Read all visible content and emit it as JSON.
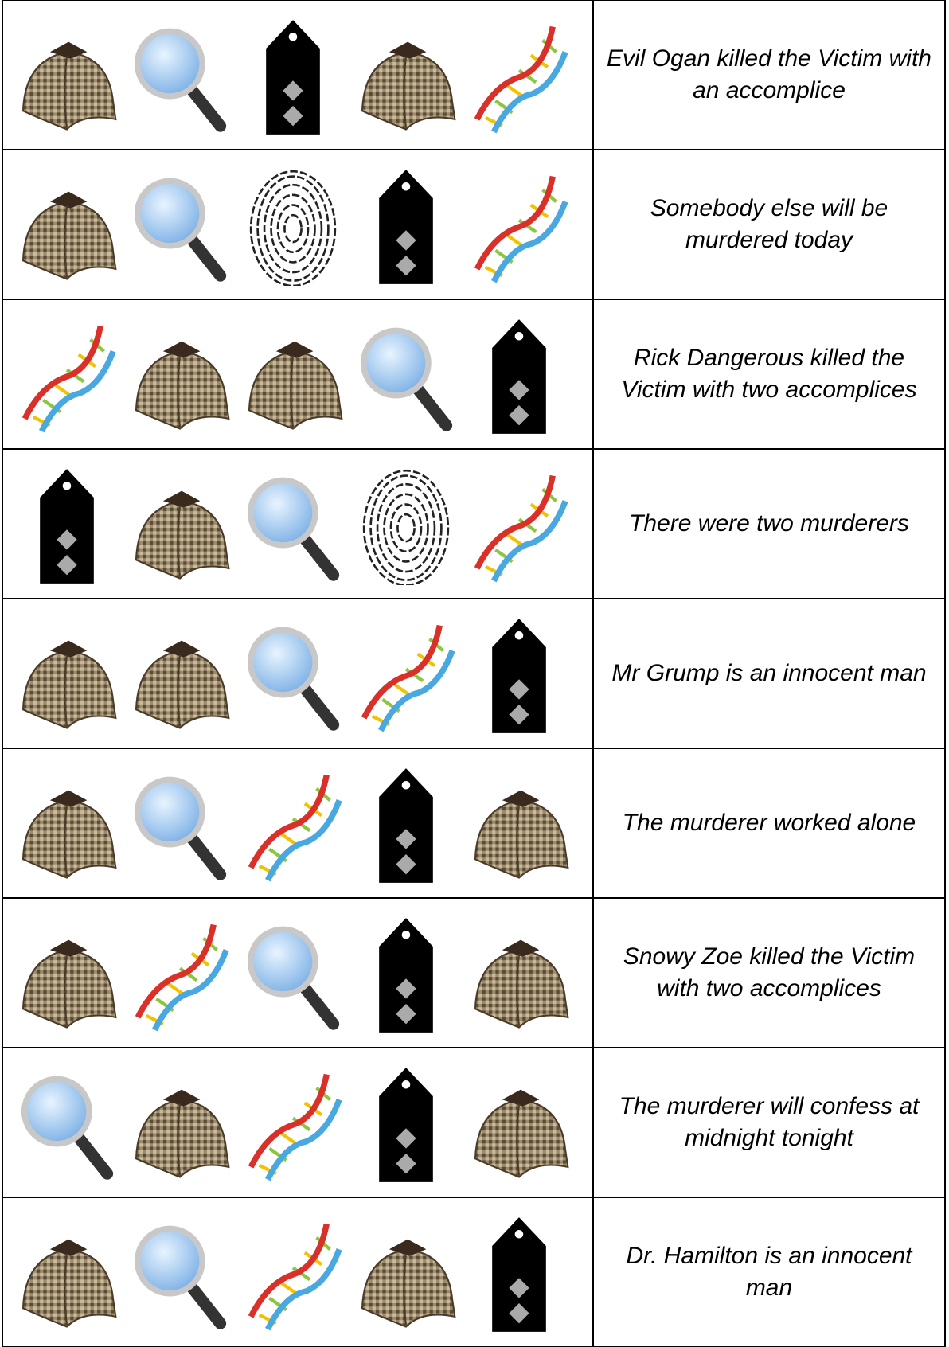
{
  "table": {
    "rows": [
      {
        "text": "Evil Ogan killed the Victim with an accomplice"
      },
      {
        "text": "Somebody else will be murdered today"
      },
      {
        "text": "Rick Dangerous killed the Victim with two accomplices"
      },
      {
        "text": "There were two murderers"
      },
      {
        "text": "Mr Grump is an innocent man"
      },
      {
        "text": "The murderer worked alone"
      },
      {
        "text": "Snowy Zoe killed the Victim with two accomplices"
      },
      {
        "text": "The murderer will confess at midnight tonight"
      },
      {
        "text": "Dr. Hamilton is an innocent man"
      }
    ]
  }
}
